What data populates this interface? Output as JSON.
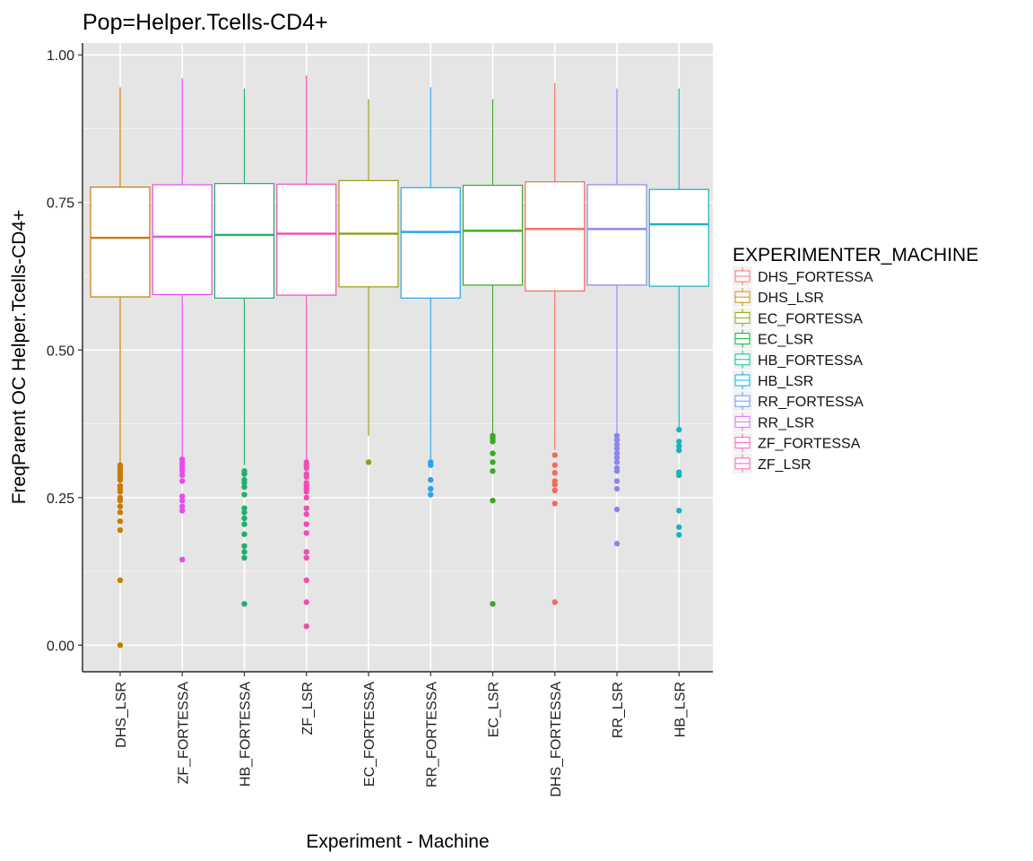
{
  "chart_data": {
    "type": "box",
    "title": "Pop=Helper.Tcells-CD4+",
    "xlabel": "Experiment - Machine",
    "ylabel": "FreqParent OC  Helper.Tcells-CD4+",
    "ylim": [
      -0.045,
      1.02
    ],
    "yticks": [
      {
        "value": 0.0,
        "label": "0.00"
      },
      {
        "value": 0.25,
        "label": "0.25"
      },
      {
        "value": 0.5,
        "label": "0.50"
      },
      {
        "value": 0.75,
        "label": "0.75"
      },
      {
        "value": 1.0,
        "label": "1.00"
      }
    ],
    "grid": true,
    "legend": {
      "title": "EXPERIMENTER_MACHINE",
      "placement": "right",
      "entries": [
        {
          "name": "DHS_FORTESSA",
          "color": "#F8766D"
        },
        {
          "name": "DHS_LSR",
          "color": "#D39200"
        },
        {
          "name": "EC_FORTESSA",
          "color": "#93AA00"
        },
        {
          "name": "EC_LSR",
          "color": "#00BA38"
        },
        {
          "name": "HB_FORTESSA",
          "color": "#00C19F"
        },
        {
          "name": "HB_LSR",
          "color": "#00B9E3"
        },
        {
          "name": "RR_FORTESSA",
          "color": "#619CFF"
        },
        {
          "name": "RR_LSR",
          "color": "#DB72FB"
        },
        {
          "name": "ZF_FORTESSA",
          "color": "#FF61C3"
        },
        {
          "name": "ZF_LSR",
          "color": "#FF61C3"
        }
      ]
    },
    "series": [
      {
        "category": "DHS_LSR",
        "color": "#C77C00",
        "whisker_low": 0.31,
        "q1": 0.59,
        "median": 0.69,
        "q3": 0.776,
        "whisker_high": 0.945,
        "outliers": [
          0.0,
          0.11,
          0.195,
          0.21,
          0.225,
          0.235,
          0.245,
          0.25,
          0.26,
          0.265,
          0.27,
          0.28,
          0.285,
          0.29,
          0.295,
          0.3,
          0.305
        ]
      },
      {
        "category": "ZF_FORTESSA",
        "color": "#E84BEF",
        "whisker_low": 0.32,
        "q1": 0.594,
        "median": 0.692,
        "q3": 0.78,
        "whisker_high": 0.96,
        "outliers": [
          0.145,
          0.228,
          0.235,
          0.245,
          0.252,
          0.278,
          0.288,
          0.295,
          0.3,
          0.305,
          0.31,
          0.315
        ]
      },
      {
        "category": "HB_FORTESSA",
        "color": "#1FAF6A",
        "whisker_low": 0.305,
        "q1": 0.588,
        "median": 0.695,
        "q3": 0.782,
        "whisker_high": 0.943,
        "outliers": [
          0.07,
          0.148,
          0.158,
          0.168,
          0.188,
          0.205,
          0.215,
          0.225,
          0.232,
          0.255,
          0.268,
          0.275,
          0.28,
          0.29,
          0.295
        ]
      },
      {
        "category": "ZF_LSR",
        "color": "#F24CB4",
        "whisker_low": 0.315,
        "q1": 0.593,
        "median": 0.697,
        "q3": 0.781,
        "whisker_high": 0.965,
        "outliers": [
          0.032,
          0.073,
          0.11,
          0.148,
          0.158,
          0.19,
          0.205,
          0.222,
          0.232,
          0.25,
          0.26,
          0.265,
          0.27,
          0.275,
          0.285,
          0.29,
          0.3,
          0.305,
          0.31
        ]
      },
      {
        "category": "EC_FORTESSA",
        "color": "#9A9A16",
        "whisker_low": 0.355,
        "q1": 0.607,
        "median": 0.697,
        "q3": 0.787,
        "whisker_high": 0.925,
        "outliers": [
          0.31
        ]
      },
      {
        "category": "RR_FORTESSA",
        "color": "#2BA2EC",
        "whisker_low": 0.315,
        "q1": 0.588,
        "median": 0.7,
        "q3": 0.775,
        "whisker_high": 0.945,
        "outliers": [
          0.255,
          0.265,
          0.28,
          0.305,
          0.31
        ]
      },
      {
        "category": "EC_LSR",
        "color": "#3DA826",
        "whisker_low": 0.36,
        "q1": 0.61,
        "median": 0.702,
        "q3": 0.779,
        "whisker_high": 0.925,
        "outliers": [
          0.07,
          0.245,
          0.295,
          0.31,
          0.325,
          0.345,
          0.35,
          0.355
        ]
      },
      {
        "category": "DHS_FORTESSA",
        "color": "#F26B5E",
        "whisker_low": 0.33,
        "q1": 0.6,
        "median": 0.705,
        "q3": 0.785,
        "whisker_high": 0.952,
        "outliers": [
          0.073,
          0.24,
          0.262,
          0.272,
          0.278,
          0.292,
          0.305,
          0.322
        ]
      },
      {
        "category": "RR_LSR",
        "color": "#8C86EB",
        "whisker_low": 0.36,
        "q1": 0.61,
        "median": 0.705,
        "q3": 0.78,
        "whisker_high": 0.943,
        "outliers": [
          0.172,
          0.23,
          0.265,
          0.278,
          0.295,
          0.3,
          0.31,
          0.318,
          0.325,
          0.333,
          0.34,
          0.348,
          0.355
        ]
      },
      {
        "category": "HB_LSR",
        "color": "#19B2BE",
        "whisker_low": 0.37,
        "q1": 0.608,
        "median": 0.713,
        "q3": 0.772,
        "whisker_high": 0.943,
        "outliers": [
          0.187,
          0.2,
          0.228,
          0.288,
          0.293,
          0.33,
          0.337,
          0.345,
          0.365
        ]
      }
    ]
  }
}
